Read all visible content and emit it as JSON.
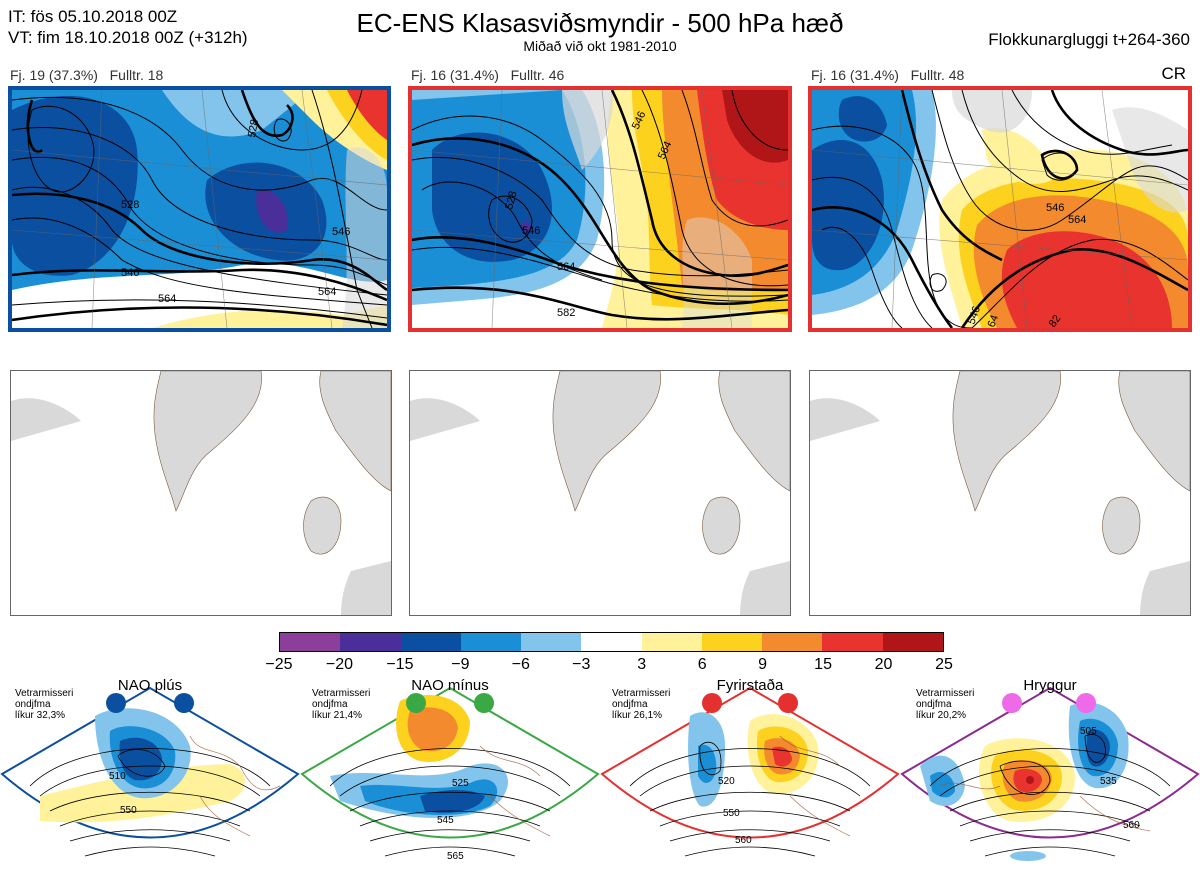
{
  "header": {
    "it_line": "IT: fös 05.10.2018 00Z",
    "vt_line": "VT: fim 18.10.2018 00Z  (+312h)",
    "title": "EC-ENS Klasasviðsmyndir - 500 hPa hæð",
    "subtitle": "Miðað við okt 1981-2010",
    "window_label": "Flokkunargluggi t+264-360",
    "cr_label": "CR"
  },
  "clusters": [
    {
      "label": "Fj. 19 (37.3%)",
      "fulltr": "Fulltr. 18",
      "frame_color": "#0b4fa0",
      "contour_labels": [
        "528",
        "528",
        "546",
        "564",
        "546",
        "564"
      ]
    },
    {
      "label": "Fj. 16 (31.4%)",
      "fulltr": "Fulltr. 46",
      "frame_color": "#e53030",
      "contour_labels": [
        "546",
        "528",
        "546",
        "564",
        "564",
        "582"
      ]
    },
    {
      "label": "Fj. 16 (31.4%)",
      "fulltr": "Fulltr. 48",
      "frame_color": "#e53030",
      "contour_labels": [
        "546",
        "564",
        "546",
        "64",
        "82"
      ]
    }
  ],
  "chart_data": {
    "type": "heatmap",
    "colorbar": {
      "ticks": [
        "−25",
        "−20",
        "−15",
        "−9",
        "−6",
        "−3",
        "3",
        "6",
        "9",
        "15",
        "20",
        "25"
      ],
      "colors": [
        "#8b3e9a",
        "#4a2f9a",
        "#0b4fa0",
        "#1a8fd6",
        "#83c4ec",
        "#ffffff",
        "#fff29a",
        "#fdd21e",
        "#f48a2e",
        "#e8332e",
        "#b01518"
      ]
    },
    "regimes": [
      {
        "name": "NAO plús",
        "note1": "Vetrarmisseri",
        "note2": "ondjfma",
        "note3": "líkur 32,3%",
        "frame_color": "#0b4fa0",
        "dot_color": "#0b4fa0",
        "contour_labels": [
          "510",
          "550"
        ]
      },
      {
        "name": "NAO mínus",
        "note1": "Vetrarmisseri",
        "note2": "ondjfma",
        "note3": "líkur 21,4%",
        "frame_color": "#3aa845",
        "dot_color": "#3aa845",
        "contour_labels": [
          "525",
          "545",
          "565"
        ]
      },
      {
        "name": "Fyrirstaða",
        "note1": "Vetrarmisseri",
        "note2": "ondjfma",
        "note3": "líkur 26,1%",
        "frame_color": "#e53030",
        "dot_color": "#e53030",
        "contour_labels": [
          "520",
          "550",
          "560"
        ]
      },
      {
        "name": "Hryggur",
        "note1": "Vetrarmisseri",
        "note2": "ondjfma",
        "note3": "líkur 20,2%",
        "frame_color": "#8b2a8f",
        "dot_color": "#ee6ae8",
        "contour_labels": [
          "505",
          "535",
          "560"
        ]
      }
    ]
  }
}
